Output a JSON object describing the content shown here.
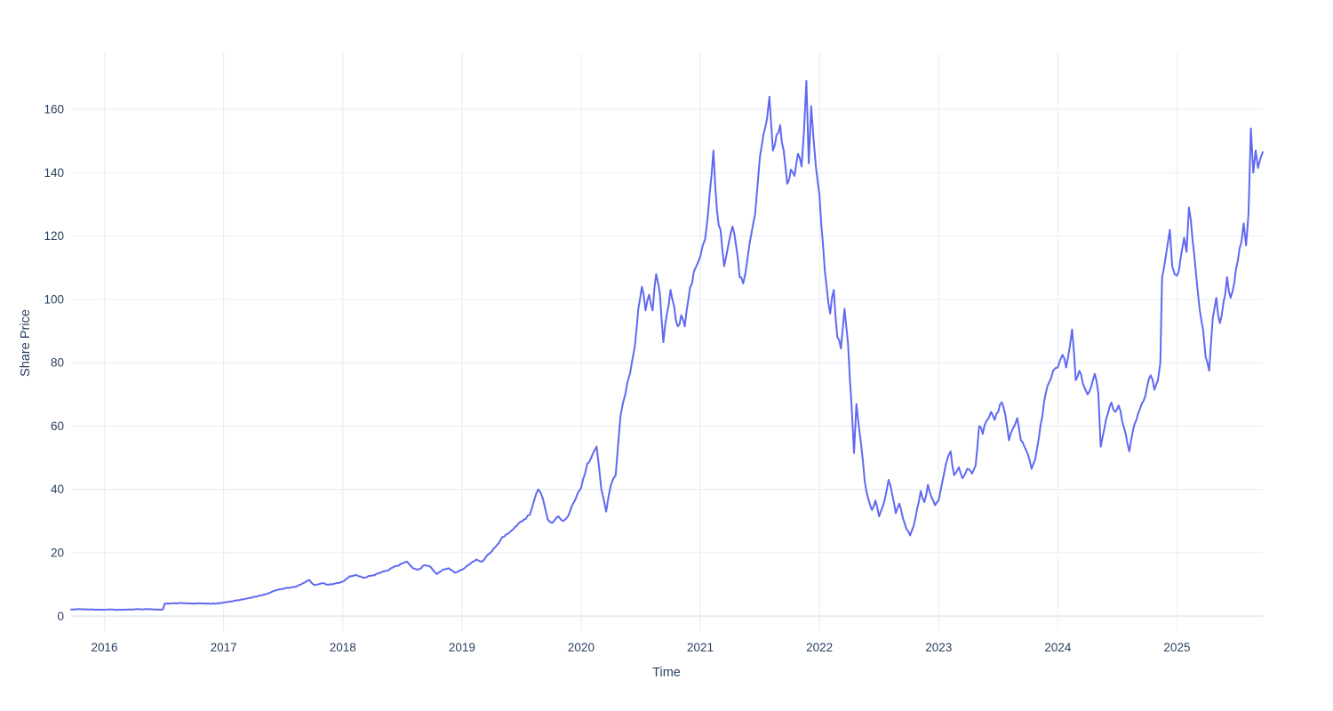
{
  "chart_data": {
    "type": "line",
    "title": "",
    "xlabel": "Time",
    "ylabel": "Share Price",
    "legend": false,
    "grid": true,
    "x_tick_values": [
      2016,
      2017,
      2018,
      2019,
      2020,
      2021,
      2022,
      2023,
      2024,
      2025
    ],
    "x_tick_labels": [
      "2016",
      "2017",
      "2018",
      "2019",
      "2020",
      "2021",
      "2022",
      "2023",
      "2024",
      "2025"
    ],
    "y_tick_values": [
      0,
      20,
      40,
      60,
      80,
      100,
      120,
      140,
      160
    ],
    "y_tick_labels": [
      "0",
      "20",
      "40",
      "60",
      "80",
      "100",
      "120",
      "140",
      "160"
    ],
    "xlim": [
      2015.72,
      2025.72
    ],
    "ylim": [
      -4.7,
      177.7
    ],
    "colors": {
      "line": "#5f69f0",
      "grid": "#eaeff7",
      "zeroline": "#e3eaf4",
      "text": "#2a3f5f",
      "background": "#ffffff"
    },
    "series": [
      {
        "name": "Share Price",
        "x": [
          2015.72,
          2015.8,
          2015.88,
          2015.96,
          2016.04,
          2016.12,
          2016.2,
          2016.28,
          2016.36,
          2016.44,
          2016.49,
          2016.505,
          2016.58,
          2016.66,
          2016.74,
          2016.82,
          2016.9,
          2016.96,
          2017.04,
          2017.12,
          2017.2,
          2017.28,
          2017.36,
          2017.44,
          2017.5,
          2017.56,
          2017.62,
          2017.68,
          2017.72,
          2017.76,
          2017.8,
          2017.84,
          2017.88,
          2017.94,
          2018.0,
          2018.06,
          2018.12,
          2018.17,
          2018.23,
          2018.3,
          2018.37,
          2018.44,
          2018.5,
          2018.54,
          2018.59,
          2018.64,
          2018.69,
          2018.74,
          2018.79,
          2018.84,
          2018.89,
          2018.94,
          2019.0,
          2019.06,
          2019.12,
          2019.17,
          2019.22,
          2019.28,
          2019.34,
          2019.4,
          2019.46,
          2019.52,
          2019.57,
          2019.61,
          2019.64,
          2019.68,
          2019.72,
          2019.76,
          2019.81,
          2019.85,
          2019.89,
          2019.94,
          2020.0,
          2020.05,
          2020.1,
          2020.13,
          2020.17,
          2020.21,
          2020.25,
          2020.29,
          2020.33,
          2020.37,
          2020.41,
          2020.45,
          2020.48,
          2020.51,
          2020.54,
          2020.57,
          2020.6,
          2020.63,
          2020.66,
          2020.69,
          2020.72,
          2020.75,
          2020.78,
          2020.81,
          2020.84,
          2020.87,
          2020.9,
          2020.93,
          2020.96,
          2021.0,
          2021.04,
          2021.08,
          2021.11,
          2021.14,
          2021.17,
          2021.2,
          2021.24,
          2021.27,
          2021.3,
          2021.33,
          2021.36,
          2021.4,
          2021.43,
          2021.46,
          2021.5,
          2021.53,
          2021.56,
          2021.58,
          2021.61,
          2021.64,
          2021.67,
          2021.7,
          2021.73,
          2021.76,
          2021.79,
          2021.82,
          2021.85,
          2021.87,
          2021.89,
          2021.91,
          2021.93,
          2021.95,
          2021.97,
          2022.0,
          2022.03,
          2022.06,
          2022.09,
          2022.12,
          2022.15,
          2022.18,
          2022.21,
          2022.24,
          2022.27,
          2022.29,
          2022.31,
          2022.33,
          2022.35,
          2022.38,
          2022.41,
          2022.44,
          2022.47,
          2022.5,
          2022.53,
          2022.56,
          2022.58,
          2022.61,
          2022.64,
          2022.67,
          2022.7,
          2022.73,
          2022.76,
          2022.79,
          2022.82,
          2022.85,
          2022.88,
          2022.91,
          2022.94,
          2022.97,
          2023.0,
          2023.04,
          2023.08,
          2023.1,
          2023.13,
          2023.17,
          2023.2,
          2023.24,
          2023.28,
          2023.31,
          2023.34,
          2023.37,
          2023.4,
          2023.44,
          2023.47,
          2023.5,
          2023.53,
          2023.56,
          2023.59,
          2023.62,
          2023.66,
          2023.69,
          2023.72,
          2023.75,
          2023.78,
          2023.81,
          2023.84,
          2023.87,
          2023.9,
          2023.93,
          2023.96,
          2024.0,
          2024.04,
          2024.07,
          2024.1,
          2024.12,
          2024.15,
          2024.18,
          2024.21,
          2024.25,
          2024.28,
          2024.31,
          2024.34,
          2024.36,
          2024.39,
          2024.42,
          2024.45,
          2024.48,
          2024.51,
          2024.54,
          2024.57,
          2024.6,
          2024.63,
          2024.66,
          2024.69,
          2024.72,
          2024.75,
          2024.78,
          2024.81,
          2024.84,
          2024.86,
          2024.875,
          2024.9,
          2024.92,
          2024.94,
          2024.96,
          2024.98,
          2025.0,
          2025.03,
          2025.06,
          2025.08,
          2025.1,
          2025.13,
          2025.16,
          2025.19,
          2025.22,
          2025.24,
          2025.27,
          2025.3,
          2025.33,
          2025.36,
          2025.39,
          2025.42,
          2025.45,
          2025.48,
          2025.51,
          2025.54,
          2025.56,
          2025.58,
          2025.6,
          2025.62,
          2025.64,
          2025.66,
          2025.68,
          2025.7,
          2025.72
        ],
        "y": [
          2.1,
          2.2,
          2.1,
          2.0,
          2.1,
          2.0,
          2.1,
          2.2,
          2.2,
          2.1,
          2.1,
          3.95,
          4.05,
          4.1,
          4.0,
          4.0,
          3.9,
          4.1,
          4.5,
          5.0,
          5.6,
          6.2,
          7.0,
          8.2,
          8.6,
          9.0,
          9.5,
          10.6,
          11.4,
          9.8,
          10.1,
          10.4,
          9.9,
          10.3,
          10.9,
          12.6,
          12.9,
          12.1,
          12.7,
          13.5,
          14.3,
          15.8,
          16.6,
          17.2,
          15.1,
          14.8,
          16.1,
          15.4,
          13.3,
          14.7,
          15.1,
          13.7,
          14.6,
          16.3,
          17.9,
          17.2,
          19.5,
          21.8,
          25.0,
          26.5,
          28.5,
          30.5,
          32.0,
          37.0,
          40.0,
          37.0,
          30.5,
          29.5,
          31.5,
          30.0,
          31.5,
          36.0,
          40.5,
          48.0,
          51.5,
          53.5,
          40.0,
          33.0,
          41.5,
          44.5,
          63.0,
          70.0,
          76.5,
          85.0,
          97.0,
          104.0,
          96.5,
          101.5,
          96.5,
          108.0,
          102.0,
          86.5,
          95.5,
          103.0,
          98.0,
          91.5,
          95.0,
          91.5,
          100.0,
          105.0,
          110.0,
          113.5,
          119.0,
          134.0,
          147.0,
          128.0,
          122.0,
          110.5,
          118.0,
          123.0,
          117.0,
          107.0,
          105.0,
          114.0,
          121.0,
          127.0,
          145.0,
          152.0,
          157.0,
          164.0,
          147.0,
          152.0,
          155.0,
          147.0,
          136.5,
          141.0,
          139.0,
          146.0,
          142.0,
          153.0,
          169.0,
          143.0,
          161.0,
          151.0,
          142.0,
          133.0,
          117.0,
          104.0,
          95.5,
          103.0,
          88.0,
          84.5,
          97.0,
          86.0,
          66.0,
          51.5,
          67.0,
          60.0,
          54.0,
          42.5,
          37.0,
          33.5,
          36.5,
          31.5,
          34.5,
          39.0,
          43.0,
          38.5,
          32.5,
          35.5,
          31.0,
          27.5,
          25.5,
          28.5,
          34.0,
          39.5,
          36.0,
          41.5,
          37.5,
          35.0,
          36.5,
          44.0,
          50.5,
          52.0,
          44.5,
          47.0,
          43.5,
          46.5,
          45.0,
          47.5,
          60.0,
          57.5,
          61.5,
          64.5,
          62.0,
          64.5,
          67.5,
          63.5,
          55.5,
          59.0,
          62.5,
          55.5,
          53.5,
          51.0,
          46.5,
          49.5,
          56.0,
          63.0,
          70.5,
          74.0,
          77.5,
          78.5,
          82.5,
          78.5,
          85.0,
          90.5,
          74.5,
          77.5,
          73.5,
          70.0,
          72.5,
          76.5,
          70.5,
          53.5,
          59.0,
          64.0,
          67.5,
          64.5,
          66.5,
          61.5,
          57.5,
          52.0,
          58.5,
          62.0,
          65.5,
          68.0,
          72.5,
          76.0,
          71.5,
          74.5,
          80.0,
          107.0,
          112.0,
          117.0,
          122.0,
          110.5,
          108.0,
          107.5,
          113.0,
          119.5,
          115.0,
          129.0,
          119.0,
          108.0,
          97.0,
          90.0,
          82.0,
          77.5,
          94.0,
          100.5,
          92.5,
          99.0,
          107.0,
          100.5,
          105.0,
          112.0,
          118.0,
          124.0,
          117.0,
          127.0,
          154.0,
          140.0,
          147.0,
          141.5,
          144.5,
          146.5
        ]
      }
    ]
  }
}
